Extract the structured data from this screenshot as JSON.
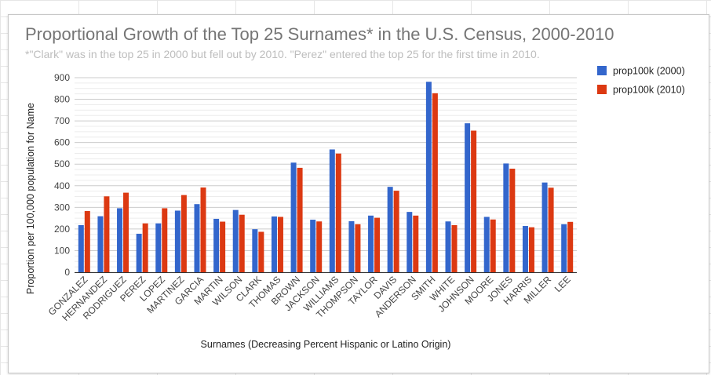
{
  "chart_data": {
    "type": "bar",
    "title": "Proportional Growth of the Top 25 Surnames* in the U.S. Census, 2000-2010",
    "subtitle": "*\"Clark\" was in the top 25 in 2000 but fell out by 2010. \"Perez\" entered the top 25 for the first time in 2010.",
    "xlabel": "Surnames (Decreasing Percent Hispanic or Latino Origin)",
    "ylabel": "Proportion per 100,000 population for Name",
    "ylim": [
      0,
      900
    ],
    "yticks": [
      0,
      100,
      200,
      300,
      400,
      500,
      600,
      700,
      800,
      900
    ],
    "grid": true,
    "legend_position": "right",
    "categories": [
      "GONZALEZ",
      "HERNANDEZ",
      "RODRIGUEZ",
      "PEREZ",
      "LOPEZ",
      "MARTINEZ",
      "GARCIA",
      "MARTIN",
      "WILSON",
      "CLARK",
      "THOMAS",
      "BROWN",
      "JACKSON",
      "WILLIAMS",
      "THOMPSON",
      "TAYLOR",
      "DAVIS",
      "ANDERSON",
      "SMITH",
      "WHITE",
      "JOHNSON",
      "MOORE",
      "JONES",
      "HARRIS",
      "MILLER",
      "LEE"
    ],
    "series": [
      {
        "name": "prop100k (2000)",
        "color": "#3366cc",
        "values": [
          218,
          259,
          296,
          178,
          226,
          285,
          315,
          247,
          288,
          199,
          258,
          507,
          243,
          568,
          236,
          262,
          395,
          279,
          881,
          235,
          689,
          256,
          503,
          214,
          415,
          222
        ]
      },
      {
        "name": "prop100k (2010)",
        "color": "#dc3912",
        "values": [
          283,
          351,
          368,
          226,
          296,
          357,
          392,
          234,
          266,
          187,
          256,
          483,
          235,
          549,
          222,
          252,
          377,
          262,
          828,
          218,
          655,
          244,
          479,
          208,
          391,
          233
        ]
      }
    ]
  }
}
